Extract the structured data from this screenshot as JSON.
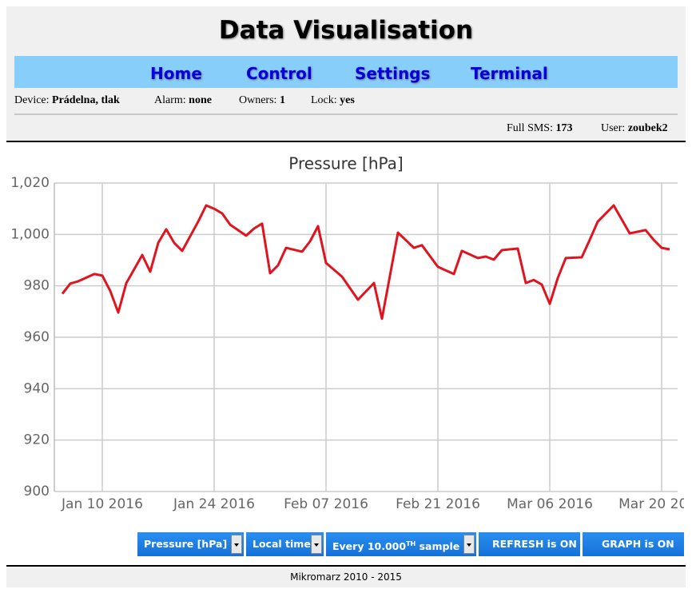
{
  "header": {
    "title": "Data Visualisation"
  },
  "nav": [
    "Home",
    "Control",
    "Settings",
    "Terminal"
  ],
  "status": {
    "device_label": "Device:",
    "device": "Prádelna, tlak",
    "alarm_label": "Alarm:",
    "alarm": "none",
    "owners_label": "Owners:",
    "owners": "1",
    "lock_label": "Lock:",
    "lock": "yes",
    "sms_label": "Full SMS:",
    "sms": "173",
    "user_label": "User:",
    "user": "zoubek2"
  },
  "chart_data": {
    "type": "line",
    "title": "Pressure [hPa]",
    "color": "#e0141e",
    "grid": true,
    "x": [
      "2016-01-05",
      "2016-01-06",
      "2016-01-07",
      "2016-01-09",
      "2016-01-10",
      "2016-01-11",
      "2016-01-12",
      "2016-01-13",
      "2016-01-15",
      "2016-01-16",
      "2016-01-17",
      "2016-01-18",
      "2016-01-19",
      "2016-01-20",
      "2016-01-22",
      "2016-01-23",
      "2016-01-24",
      "2016-01-25",
      "2016-01-26",
      "2016-01-28",
      "2016-01-29",
      "2016-01-30",
      "2016-01-31",
      "2016-02-01",
      "2016-02-02",
      "2016-02-04",
      "2016-02-05",
      "2016-02-06",
      "2016-02-07",
      "2016-02-09",
      "2016-02-11",
      "2016-02-13",
      "2016-02-14",
      "2016-02-16",
      "2016-02-18",
      "2016-02-19",
      "2016-02-21",
      "2016-02-23",
      "2016-02-24",
      "2016-02-26",
      "2016-02-27",
      "2016-02-28",
      "2016-02-29",
      "2016-03-02",
      "2016-03-03",
      "2016-03-04",
      "2016-03-05",
      "2016-03-06",
      "2016-03-07",
      "2016-03-08",
      "2016-03-10",
      "2016-03-11",
      "2016-03-12",
      "2016-03-14",
      "2016-03-16",
      "2016-03-18",
      "2016-03-19",
      "2016-03-20",
      "2016-03-21"
    ],
    "values": [
      976.9,
      980.9,
      981.8,
      984.6,
      984,
      978,
      969.6,
      981,
      992,
      985.5,
      996.7,
      1002,
      996.7,
      993.6,
      1005,
      1011.3,
      1010,
      1008.2,
      1003.8,
      999.5,
      1002.3,
      1004.2,
      984.9,
      988,
      994.8,
      993.3,
      997.3,
      1003.2,
      988.9,
      983.6,
      974.6,
      981.1,
      967.2,
      1000.7,
      994.8,
      995.8,
      987.4,
      984.6,
      993.6,
      990.8,
      991.4,
      990.2,
      993.9,
      994.5,
      981.1,
      982.3,
      980.5,
      973,
      983,
      990.8,
      991.1,
      997.9,
      1005,
      1011.3,
      1000.4,
      1001.7,
      997.9,
      994.8,
      994.2
    ],
    "xlim": [
      "2016-01-04",
      "2016-03-22"
    ],
    "xticks": [
      {
        "value": "2016-01-10",
        "label": "Jan 10 2016"
      },
      {
        "value": "2016-01-24",
        "label": "Jan 24 2016"
      },
      {
        "value": "2016-02-07",
        "label": "Feb 07 2016"
      },
      {
        "value": "2016-02-21",
        "label": "Feb 21 2016"
      },
      {
        "value": "2016-03-06",
        "label": "Mar 06 2016"
      },
      {
        "value": "2016-03-20",
        "label": "Mar 20 2016"
      }
    ],
    "ylim": [
      900,
      1020
    ],
    "yticks": [
      900,
      920,
      940,
      960,
      980,
      {
        "value": 1000,
        "label": "1,000"
      },
      {
        "value": 1020,
        "label": "1,020"
      }
    ]
  },
  "controls": {
    "measure": "Pressure [hPa]",
    "time": "Local time",
    "sample_prefix": "Every 10.000",
    "sample_sup": "TH",
    "sample_suffix": "sample",
    "refresh": "REFRESH is ON",
    "graph": "GRAPH is ON"
  },
  "footer": "Mikromarz 2010 - 2015"
}
